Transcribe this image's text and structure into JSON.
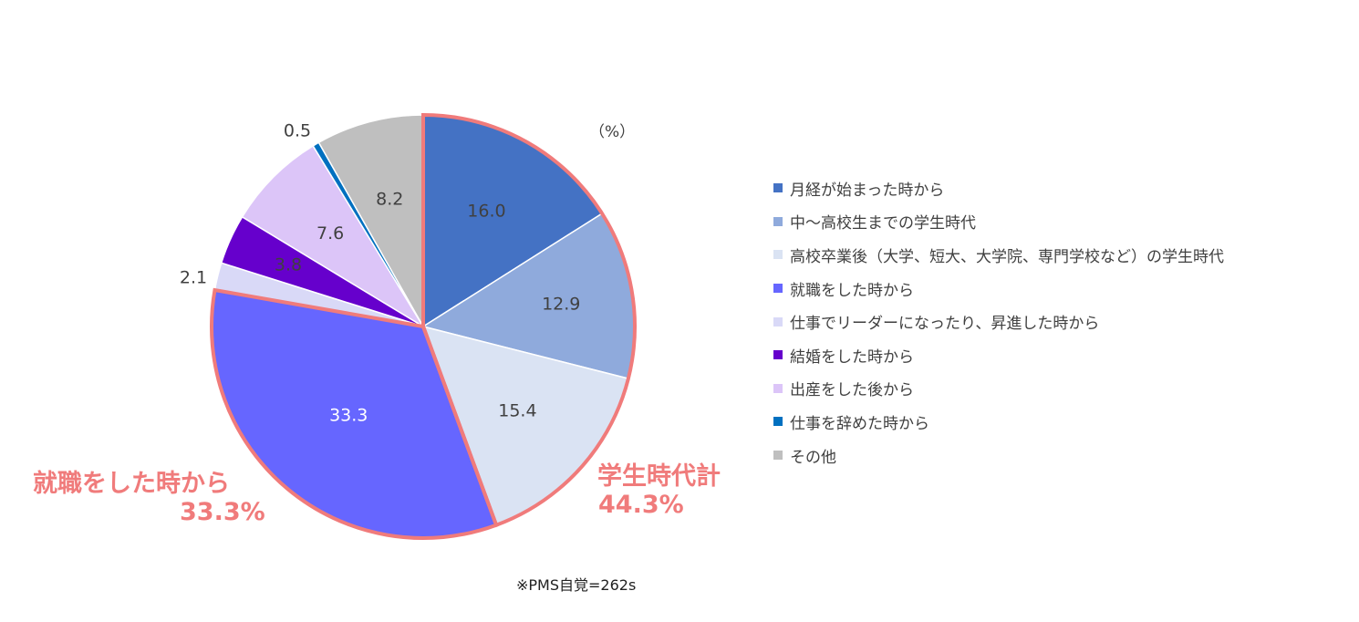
{
  "chart_data": {
    "type": "pie",
    "unit_label": "（%）",
    "slices": [
      {
        "label": "月経が始まった時から",
        "value": 16.0,
        "value_label": "16.0",
        "color": "#4472c4"
      },
      {
        "label": "中〜高校生までの学生時代",
        "value": 12.9,
        "value_label": "12.9",
        "color": "#8faadc"
      },
      {
        "label": "高校卒業後（大学、短大、大学院、専門学校など）の学生時代",
        "value": 15.4,
        "value_label": "15.4",
        "color": "#dae3f3"
      },
      {
        "label": "就職をした時から",
        "value": 33.3,
        "value_label": "33.3",
        "color": "#6666ff"
      },
      {
        "label": "仕事でリーダーになったり、昇進した時から",
        "value": 2.1,
        "value_label": "2.1",
        "color": "#d9d9f7"
      },
      {
        "label": "結婚をした時から",
        "value": 3.8,
        "value_label": "3.8",
        "color": "#6600cc"
      },
      {
        "label": "出産をした後から",
        "value": 7.6,
        "value_label": "7.6",
        "color": "#dcc5f8"
      },
      {
        "label": "仕事を辞めた時から",
        "value": 0.5,
        "value_label": "0.5",
        "color": "#0070c0"
      },
      {
        "label": "その他",
        "value": 8.2,
        "value_label": "8.2",
        "color": "#bfbfbf"
      }
    ],
    "legend_position": "right",
    "highlight_color": "#f07b7b",
    "callouts": {
      "left_title": "就職をした時から",
      "left_value": "33.3%",
      "right_title": "学生時代計",
      "right_value": "44.3%"
    },
    "footnote": "※PMS自覚=262s"
  }
}
